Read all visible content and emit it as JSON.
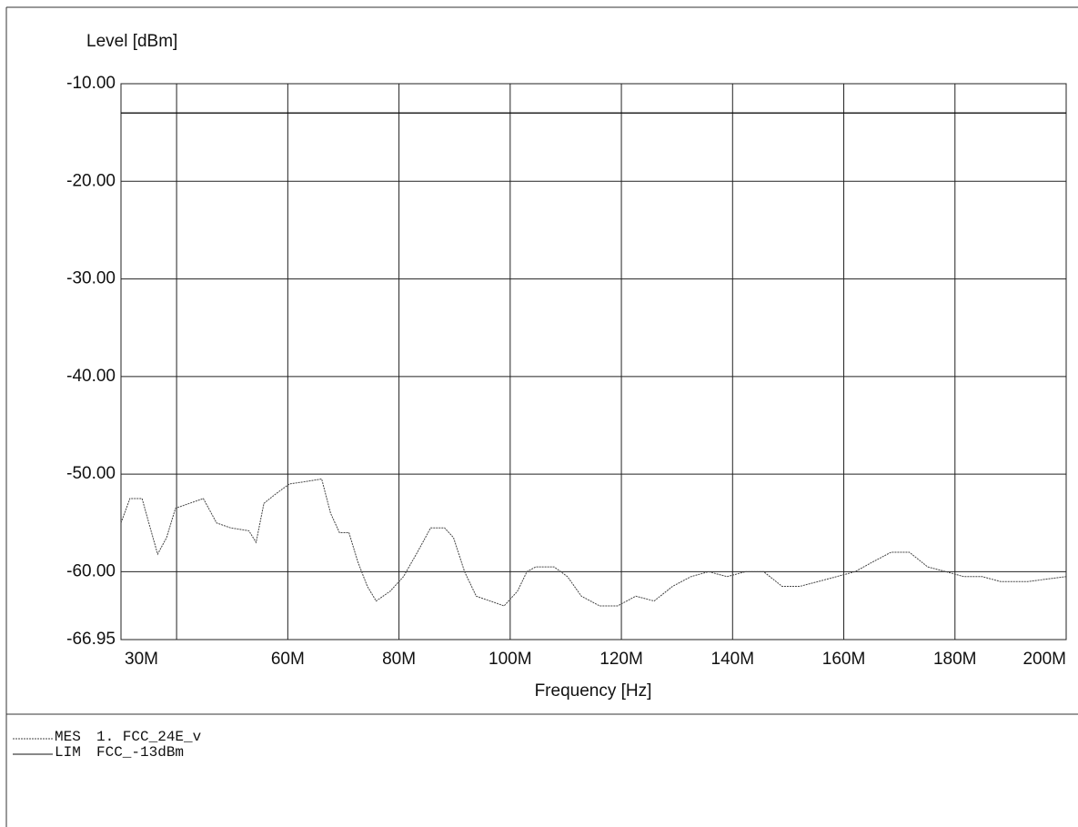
{
  "chart_data": {
    "type": "line",
    "y_label": "Level [dBm]",
    "x_label": "Frequency [Hz]",
    "xlim": [
      30000000,
      200000000
    ],
    "ylim": [
      -66.95,
      -10
    ],
    "xticks": [
      {
        "value": 30000000,
        "label": "30M"
      },
      {
        "value": 60000000,
        "label": "60M"
      },
      {
        "value": 80000000,
        "label": "80M"
      },
      {
        "value": 100000000,
        "label": "100M"
      },
      {
        "value": 120000000,
        "label": "120M"
      },
      {
        "value": 140000000,
        "label": "140M"
      },
      {
        "value": 160000000,
        "label": "160M"
      },
      {
        "value": 180000000,
        "label": "180M"
      },
      {
        "value": 200000000,
        "label": "200M"
      }
    ],
    "x_minor_grid": [
      40000000
    ],
    "yticks": [
      {
        "value": -10,
        "label": "-10.00"
      },
      {
        "value": -20,
        "label": "-20.00"
      },
      {
        "value": -30,
        "label": "-30.00"
      },
      {
        "value": -40,
        "label": "-40.00"
      },
      {
        "value": -50,
        "label": "-50.00"
      },
      {
        "value": -60,
        "label": "-60.00"
      },
      {
        "value": -66.95,
        "label": "-66.95"
      }
    ],
    "grid": true,
    "series": [
      {
        "name": "MES",
        "label": "1. FCC_24E_v",
        "color": "#444444",
        "dash": "dotted",
        "x": [
          30000000,
          31600000,
          33800000,
          35000000,
          36600000,
          38200000,
          39800000,
          42300000,
          44800000,
          47200000,
          49700000,
          53000000,
          54300000,
          55700000,
          57900000,
          60300000,
          62800000,
          66100000,
          67700000,
          69300000,
          71000000,
          72600000,
          74300000,
          75900000,
          78400000,
          80800000,
          83300000,
          85700000,
          88200000,
          89800000,
          91800000,
          93900000,
          96400000,
          98900000,
          101300000,
          103000000,
          104600000,
          107900000,
          110300000,
          112800000,
          116100000,
          119300000,
          122600000,
          125900000,
          129200000,
          132500000,
          135700000,
          139000000,
          142300000,
          145600000,
          148900000,
          152100000,
          155400000,
          158700000,
          162000000,
          165200000,
          168500000,
          171800000,
          175100000,
          178400000,
          181600000,
          184900000,
          188200000,
          193100000,
          200000000
        ],
        "values": [
          -55,
          -52.5,
          -52.5,
          -55,
          -58.2,
          -56.5,
          -53.5,
          -53,
          -52.5,
          -55,
          -55.5,
          -55.8,
          -57,
          -53,
          -52,
          -51,
          -50.8,
          -50.5,
          -54,
          -56,
          -56,
          -59,
          -61.5,
          -63,
          -62,
          -60.5,
          -58,
          -55.5,
          -55.5,
          -56.5,
          -60,
          -62.5,
          -63,
          -63.5,
          -62,
          -60,
          -59.5,
          -59.5,
          -60.5,
          -62.5,
          -63.5,
          -63.5,
          -62.5,
          -63,
          -61.5,
          -60.5,
          -60,
          -60.5,
          -60,
          -60,
          -61.5,
          -61.5,
          -61,
          -60.5,
          -60,
          -59,
          -58,
          -58,
          -59.5,
          -60,
          -60.5,
          -60.5,
          -61,
          -61,
          -60.5
        ]
      },
      {
        "name": "LIM",
        "label": "FCC_-13dBm",
        "color": "#111111",
        "dash": "solid",
        "x": [
          30000000,
          200000000
        ],
        "values": [
          -13,
          -13
        ]
      }
    ]
  }
}
